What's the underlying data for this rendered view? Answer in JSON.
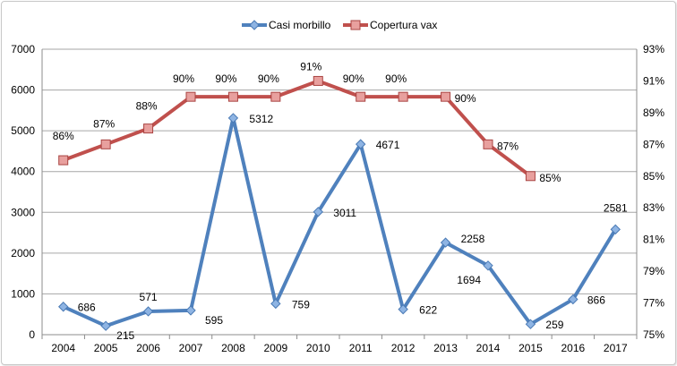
{
  "chart_data": {
    "type": "line",
    "categories": [
      "2004",
      "2005",
      "2006",
      "2007",
      "2008",
      "2009",
      "2010",
      "2011",
      "2012",
      "2013",
      "2014",
      "2015",
      "2016",
      "2017"
    ],
    "y_left": {
      "range": [
        0,
        7000
      ],
      "ticks": [
        0,
        1000,
        2000,
        3000,
        4000,
        5000,
        6000,
        7000
      ]
    },
    "y_right": {
      "range": [
        75,
        93
      ],
      "ticks": [
        "75%",
        "77%",
        "79%",
        "81%",
        "83%",
        "85%",
        "87%",
        "89%",
        "91%",
        "93%"
      ]
    },
    "grid": true,
    "legend_position": "top",
    "series": [
      {
        "name": "Casi morbillo",
        "axis": "left",
        "color": "#4f81bd",
        "marker": "diamond",
        "values": [
          686,
          215,
          571,
          595,
          5312,
          759,
          3011,
          4671,
          622,
          2258,
          1694,
          259,
          866,
          2581
        ],
        "labels": [
          "686",
          "215",
          "571",
          "595",
          "5312",
          "759",
          "3011",
          "4671",
          "622",
          "2258",
          "1694",
          "259",
          "866",
          "2581"
        ]
      },
      {
        "name": "Copertura vax",
        "axis": "right",
        "color": "#c0504d",
        "marker": "square",
        "values": [
          86,
          87,
          88,
          90,
          90,
          90,
          91,
          90,
          90,
          90,
          87,
          85,
          null,
          null
        ],
        "labels": [
          "86%",
          "87%",
          "88%",
          "90%",
          "90%",
          "90%",
          "91%",
          "90%",
          "90%",
          "90%",
          "87%",
          "85%",
          "",
          ""
        ]
      }
    ]
  }
}
